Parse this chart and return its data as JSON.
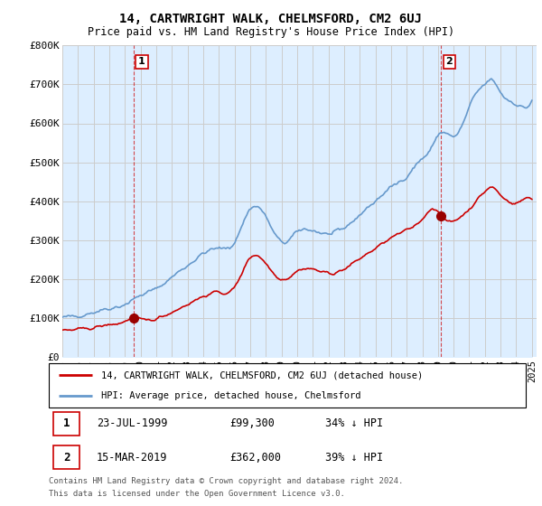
{
  "title": "14, CARTWRIGHT WALK, CHELMSFORD, CM2 6UJ",
  "subtitle": "Price paid vs. HM Land Registry's House Price Index (HPI)",
  "ylim": [
    0,
    800000
  ],
  "yticks": [
    0,
    100000,
    200000,
    300000,
    400000,
    500000,
    600000,
    700000,
    800000
  ],
  "ytick_labels": [
    "£0",
    "£100K",
    "£200K",
    "£300K",
    "£400K",
    "£500K",
    "£600K",
    "£700K",
    "£800K"
  ],
  "xlim_start": 1995.0,
  "xlim_end": 2025.3,
  "sale1": {
    "year": 1999.55,
    "price": 99300,
    "label": "1",
    "date": "23-JUL-1999",
    "amount": "£99,300",
    "pct": "34% ↓ HPI"
  },
  "sale2": {
    "year": 2019.2,
    "price": 362000,
    "label": "2",
    "date": "15-MAR-2019",
    "amount": "£362,000",
    "pct": "39% ↓ HPI"
  },
  "line_red_color": "#cc0000",
  "line_blue_color": "#6699cc",
  "fill_blue_color": "#ddeeff",
  "marker_red_color": "#990000",
  "grid_color": "#cccccc",
  "bg_color": "#ffffff",
  "legend_label_red": "14, CARTWRIGHT WALK, CHELMSFORD, CM2 6UJ (detached house)",
  "legend_label_blue": "HPI: Average price, detached house, Chelmsford",
  "footer1": "Contains HM Land Registry data © Crown copyright and database right 2024.",
  "footer2": "This data is licensed under the Open Government Licence v3.0.",
  "number_box_color": "#cc0000",
  "xtick_years": [
    1995,
    1996,
    1997,
    1998,
    1999,
    2000,
    2001,
    2002,
    2003,
    2004,
    2005,
    2006,
    2007,
    2008,
    2009,
    2010,
    2011,
    2012,
    2013,
    2014,
    2015,
    2016,
    2017,
    2018,
    2019,
    2020,
    2021,
    2022,
    2023,
    2024,
    2025
  ]
}
